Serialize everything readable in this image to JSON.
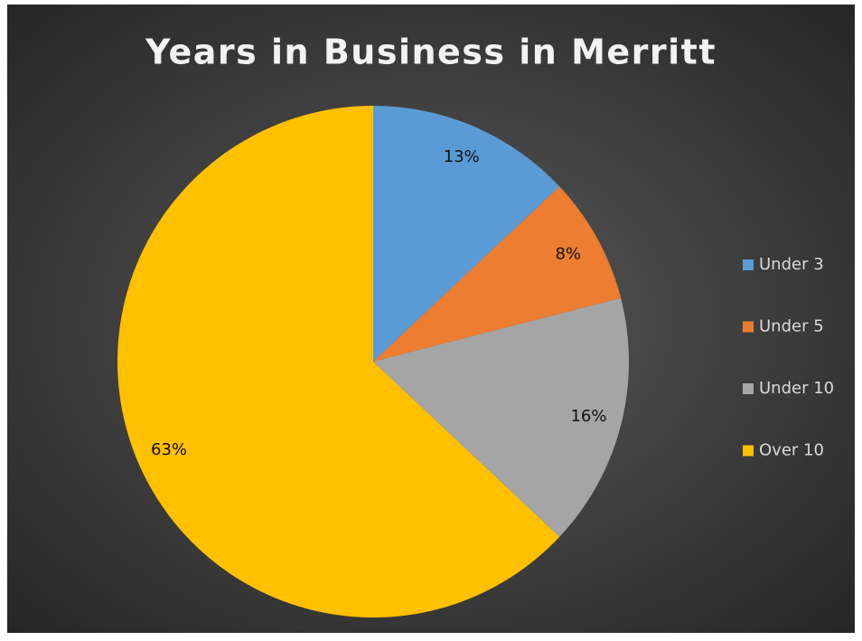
{
  "chart_data": {
    "type": "pie",
    "title": "Years in Business in Merritt",
    "categories": [
      "Under 3",
      "Under 5",
      "Under 10",
      "Over 10"
    ],
    "values": [
      13,
      8,
      16,
      63
    ],
    "value_labels": [
      "13%",
      "8%",
      "16%",
      "63%"
    ],
    "colors": [
      "#5b9bd5",
      "#ed7d31",
      "#a5a5a5",
      "#ffc000"
    ],
    "legend": "right"
  }
}
